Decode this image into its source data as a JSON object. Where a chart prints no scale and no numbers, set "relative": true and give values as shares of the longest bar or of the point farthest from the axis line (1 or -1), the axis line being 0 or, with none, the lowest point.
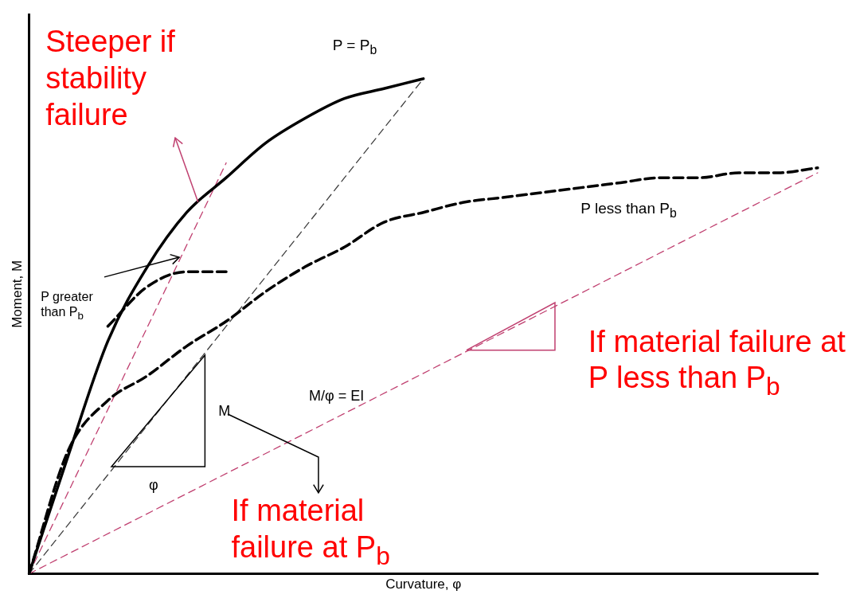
{
  "chart_data": {
    "type": "line",
    "relative": true,
    "marker": "none",
    "legend": false,
    "grid": false,
    "line_style": "dashed",
    "xlabel": "Curvature, φ",
    "ylabel": "Moment, M",
    "categories": [
      null,
      null,
      null,
      null,
      null,
      null,
      null,
      null,
      null,
      null,
      null,
      null,
      null,
      null,
      null,
      null,
      null,
      null,
      null,
      null,
      null
    ],
    "series": [
      {
        "name": "P = P$_{b}$",
        "color": "#000000",
        "line_style": "solid",
        "values": [
          0,
          0.24,
          0.47,
          0.62,
          0.73,
          0.8,
          0.87,
          0.92,
          0.96,
          0.98,
          1,
          null,
          null,
          null,
          null,
          null,
          null,
          null,
          null,
          null,
          null
        ]
      },
      {
        "name": "P less than P$_{b}$",
        "color": "#000000",
        "values": [
          0,
          0.25,
          0.35,
          0.4,
          0.46,
          0.51,
          0.57,
          0.62,
          0.66,
          0.71,
          0.73,
          0.75,
          0.76,
          0.77,
          0.78,
          0.79,
          0.8,
          0.8,
          0.81,
          0.81,
          0.82
        ]
      },
      {
        "name": "P greater than P$_{b}$",
        "color": "#000000",
        "values": [
          null,
          null,
          0.5,
          0.58,
          0.61,
          0.61,
          null,
          null,
          null,
          null,
          null,
          null,
          null,
          null,
          null,
          null,
          null,
          null,
          null,
          null,
          null
        ]
      },
      {
        "color": "#404040",
        "values": [
          0,
          0.1,
          0.2,
          0.3,
          0.4,
          0.5,
          0.6,
          0.7,
          0.8,
          0.9,
          1,
          null,
          null,
          null,
          null,
          null,
          null,
          null,
          null,
          null,
          null
        ]
      },
      {
        "color": "#c04070",
        "values": [
          0,
          null,
          null,
          null,
          null,
          null,
          null,
          null,
          null,
          null,
          null,
          null,
          null,
          null,
          null,
          null,
          null,
          null,
          null,
          null,
          0.81
        ]
      },
      {
        "color": "#c04070",
        "values": [
          0,
          null,
          null,
          null,
          null,
          0.83,
          null,
          null,
          null,
          null,
          null,
          null,
          null,
          null,
          null,
          null,
          null,
          null,
          null,
          null,
          null
        ]
      }
    ],
    "annotations": [
      "Steeper if stability failure",
      "If material failure at P less than P$_{b}$",
      "If material failure at P$_{b}$",
      "M",
      "φ",
      "M/φ = EI"
    ]
  }
}
